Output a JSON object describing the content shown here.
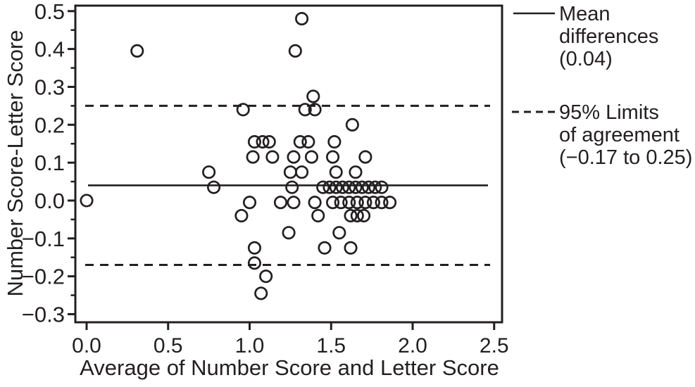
{
  "figure": {
    "background": "#ffffff",
    "ink_color": "#231f20"
  },
  "chart_data": {
    "type": "scatter",
    "title": "",
    "xlabel": "Average of Number Score and Letter Score",
    "ylabel": "Number Score-Letter Score",
    "grid": false,
    "legend_position": "right",
    "x_axis": {
      "min": 0.0,
      "max": 2.5,
      "ticks": [
        {
          "label": "0.0",
          "value": 0.0
        },
        {
          "label": "0.5",
          "value": 0.5
        },
        {
          "label": "1.0",
          "value": 1.0
        },
        {
          "label": "1.5",
          "value": 1.5
        },
        {
          "label": "2.0",
          "value": 2.0
        },
        {
          "label": "2.5",
          "value": 2.5
        }
      ]
    },
    "y_axis": {
      "min": -0.3,
      "max": 0.5,
      "major_tick_step": 0.1,
      "minor_tick_step": 0.05,
      "ticks": [
        {
          "label": "0.5",
          "value": 0.5
        },
        {
          "label": "0.4",
          "value": 0.4
        },
        {
          "label": "0.3",
          "value": 0.3
        },
        {
          "label": "0.2",
          "value": 0.2
        },
        {
          "label": "0.1",
          "value": 0.1
        },
        {
          "label": "0.0",
          "value": 0.0
        },
        {
          "label": "−0.1",
          "value": -0.1
        },
        {
          "label": "−0.2",
          "value": -0.2
        },
        {
          "label": "−0.3",
          "value": -0.3
        }
      ]
    },
    "marker": {
      "shape": "open-circle",
      "radius_px": 8.2,
      "stroke_px": 2.7
    },
    "points": [
      [
        0.0,
        0.0
      ],
      [
        0.31,
        0.395
      ],
      [
        1.28,
        0.395
      ],
      [
        1.32,
        0.48
      ],
      [
        1.39,
        0.275
      ],
      [
        0.96,
        0.24
      ],
      [
        1.34,
        0.24
      ],
      [
        1.4,
        0.24
      ],
      [
        1.63,
        0.2
      ],
      [
        1.03,
        0.155
      ],
      [
        1.08,
        0.155
      ],
      [
        1.12,
        0.155
      ],
      [
        1.31,
        0.155
      ],
      [
        1.36,
        0.155
      ],
      [
        1.52,
        0.155
      ],
      [
        1.02,
        0.115
      ],
      [
        1.14,
        0.115
      ],
      [
        1.27,
        0.115
      ],
      [
        1.38,
        0.115
      ],
      [
        1.51,
        0.115
      ],
      [
        1.71,
        0.115
      ],
      [
        0.75,
        0.075
      ],
      [
        1.25,
        0.075
      ],
      [
        1.32,
        0.075
      ],
      [
        1.53,
        0.075
      ],
      [
        1.65,
        0.075
      ],
      [
        0.78,
        0.035
      ],
      [
        1.26,
        0.035
      ],
      [
        1.45,
        0.035
      ],
      [
        1.49,
        0.035
      ],
      [
        1.53,
        0.035
      ],
      [
        1.57,
        0.035
      ],
      [
        1.61,
        0.035
      ],
      [
        1.65,
        0.035
      ],
      [
        1.69,
        0.035
      ],
      [
        1.73,
        0.035
      ],
      [
        1.77,
        0.035
      ],
      [
        1.81,
        0.035
      ],
      [
        1.0,
        -0.005
      ],
      [
        1.19,
        -0.005
      ],
      [
        1.27,
        -0.005
      ],
      [
        1.4,
        -0.005
      ],
      [
        1.51,
        -0.005
      ],
      [
        1.56,
        -0.005
      ],
      [
        1.61,
        -0.005
      ],
      [
        1.66,
        -0.005
      ],
      [
        1.71,
        -0.005
      ],
      [
        1.76,
        -0.005
      ],
      [
        1.81,
        -0.005
      ],
      [
        1.86,
        -0.005
      ],
      [
        0.95,
        -0.04
      ],
      [
        1.42,
        -0.04
      ],
      [
        1.62,
        -0.04
      ],
      [
        1.66,
        -0.04
      ],
      [
        1.7,
        -0.04
      ],
      [
        1.24,
        -0.085
      ],
      [
        1.55,
        -0.085
      ],
      [
        1.03,
        -0.125
      ],
      [
        1.46,
        -0.125
      ],
      [
        1.62,
        -0.125
      ],
      [
        1.03,
        -0.165
      ],
      [
        1.1,
        -0.2
      ],
      [
        1.07,
        -0.245
      ]
    ],
    "reference_lines": [
      {
        "id": "mean",
        "style": "solid",
        "value": 0.04
      },
      {
        "id": "upper-loa",
        "style": "dashed",
        "value": 0.25
      },
      {
        "id": "lower-loa",
        "style": "dashed",
        "value": -0.17
      }
    ],
    "legend": {
      "entries": [
        {
          "swatch": "solid-line",
          "lines": [
            "Mean",
            "differences",
            "(0.04)"
          ]
        },
        {
          "swatch": "dashed-line",
          "lines": [
            "95% Limits",
            "of agreement",
            "(−0.17 to 0.25)"
          ]
        }
      ]
    }
  }
}
